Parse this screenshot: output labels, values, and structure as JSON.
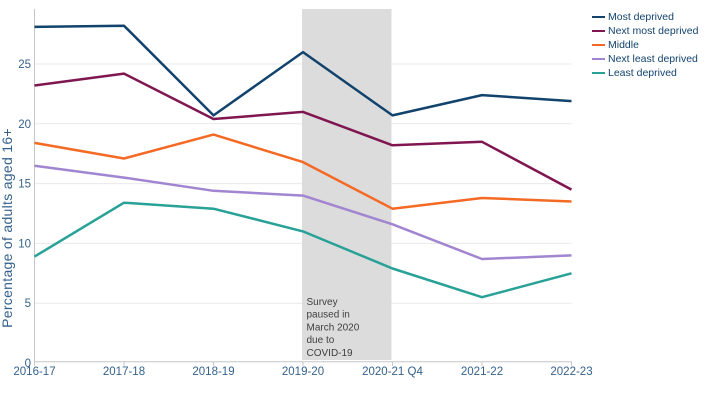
{
  "colors": {
    "background": "#ffffff",
    "gridline": "#e9e9e9",
    "axis_line": "#c6c6c6",
    "axis_text": "#35618c",
    "legend_text": "#12436D",
    "annotation_text": "#404040",
    "pause_band": "#dcdcdc"
  },
  "chart_data": {
    "type": "line",
    "title": "",
    "xlabel": "",
    "ylabel": "Percentage of adults aged 16+",
    "categories": [
      "2016-17",
      "2017-18",
      "2018-19",
      "2019-20",
      "2020-21 Q4",
      "2021-22",
      "2022-23"
    ],
    "y_ticks": [
      0,
      5,
      10,
      15,
      20,
      25
    ],
    "ylim": [
      0,
      29.6
    ],
    "grid": "horizontal-only",
    "legend_position": "top-right",
    "series": [
      {
        "name": "Most deprived",
        "color": "#12436D",
        "values": [
          28.1,
          28.2,
          20.7,
          26.0,
          20.7,
          22.4,
          21.9
        ]
      },
      {
        "name": "Next most deprived",
        "color": "#801650",
        "values": [
          23.2,
          24.2,
          20.4,
          21.0,
          18.2,
          18.5,
          14.5
        ]
      },
      {
        "name": "Middle",
        "color": "#F46A25",
        "values": [
          18.4,
          17.1,
          19.1,
          16.8,
          12.9,
          13.8,
          13.5
        ]
      },
      {
        "name": "Next least deprived",
        "color": "#A285D1",
        "values": [
          16.5,
          15.5,
          14.4,
          14.0,
          11.6,
          8.7,
          9.0
        ]
      },
      {
        "name": "Least deprived",
        "color": "#28A197",
        "values": [
          8.9,
          13.4,
          12.9,
          11.0,
          7.9,
          5.5,
          7.5
        ]
      }
    ],
    "annotation": {
      "band_from_category": "2019-20",
      "band_to_category": "2020-21 Q4",
      "text_lines": [
        "Survey",
        "paused in",
        "March 2020",
        "due to",
        "COVID-19"
      ]
    }
  }
}
